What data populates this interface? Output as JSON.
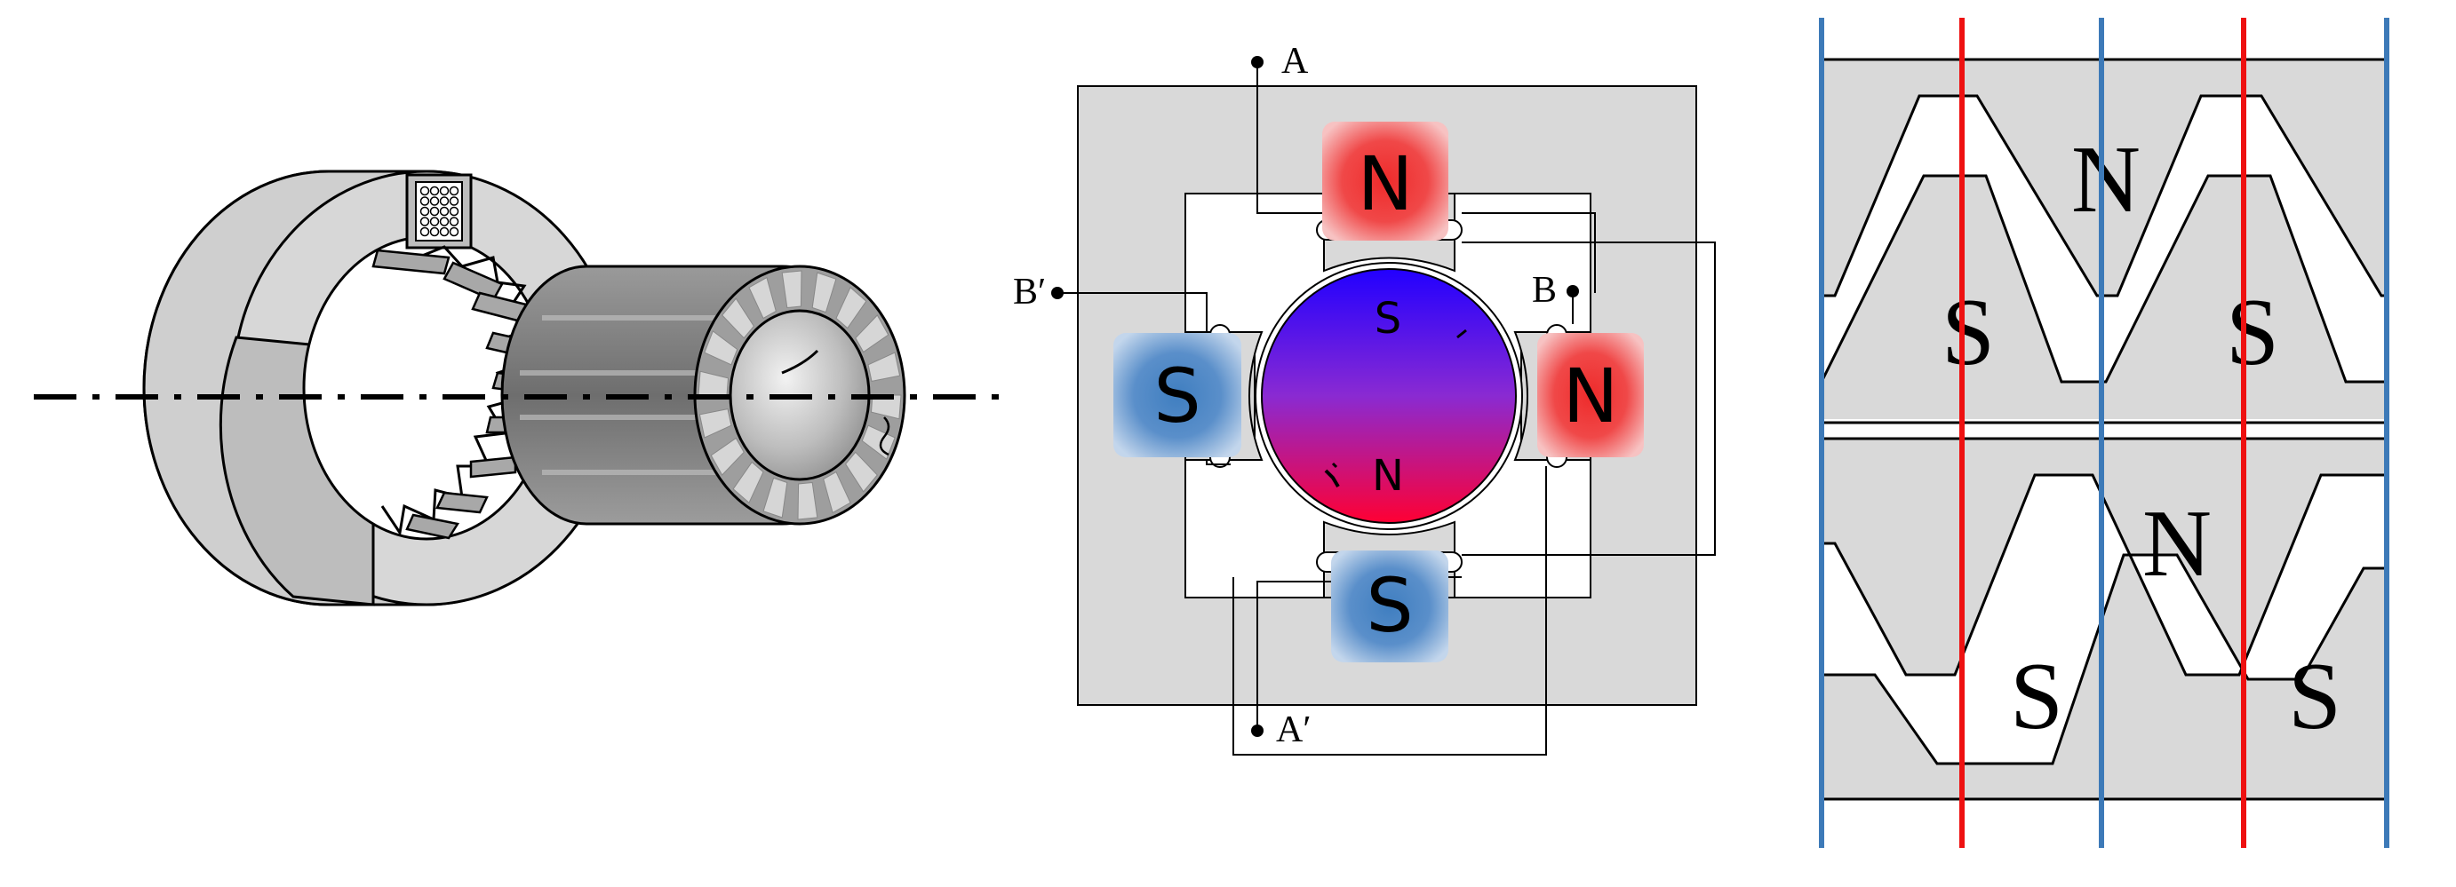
{
  "stator_rotor": {
    "terminals": {
      "a": "A",
      "a_prime": "A′",
      "b": "B",
      "b_prime": "B′"
    },
    "poles": {
      "top": "N",
      "right": "N",
      "left": "S",
      "bottom": "S"
    },
    "rotor": {
      "top": "S",
      "bottom": "N"
    }
  },
  "tooth_profile": {
    "upper_n": "N",
    "upper_s1": "S",
    "upper_s2": "S",
    "lower_n": "N",
    "lower_s1": "S",
    "lower_s2": "S"
  },
  "colors": {
    "north": "#ee2b2b",
    "south": "#3f7ec0",
    "iron": "#d9d9d9",
    "rotor_top": "#2200ff",
    "rotor_bottom": "#ff0033",
    "guide_blue": "#3d7ab8",
    "guide_red": "#ee1111"
  }
}
